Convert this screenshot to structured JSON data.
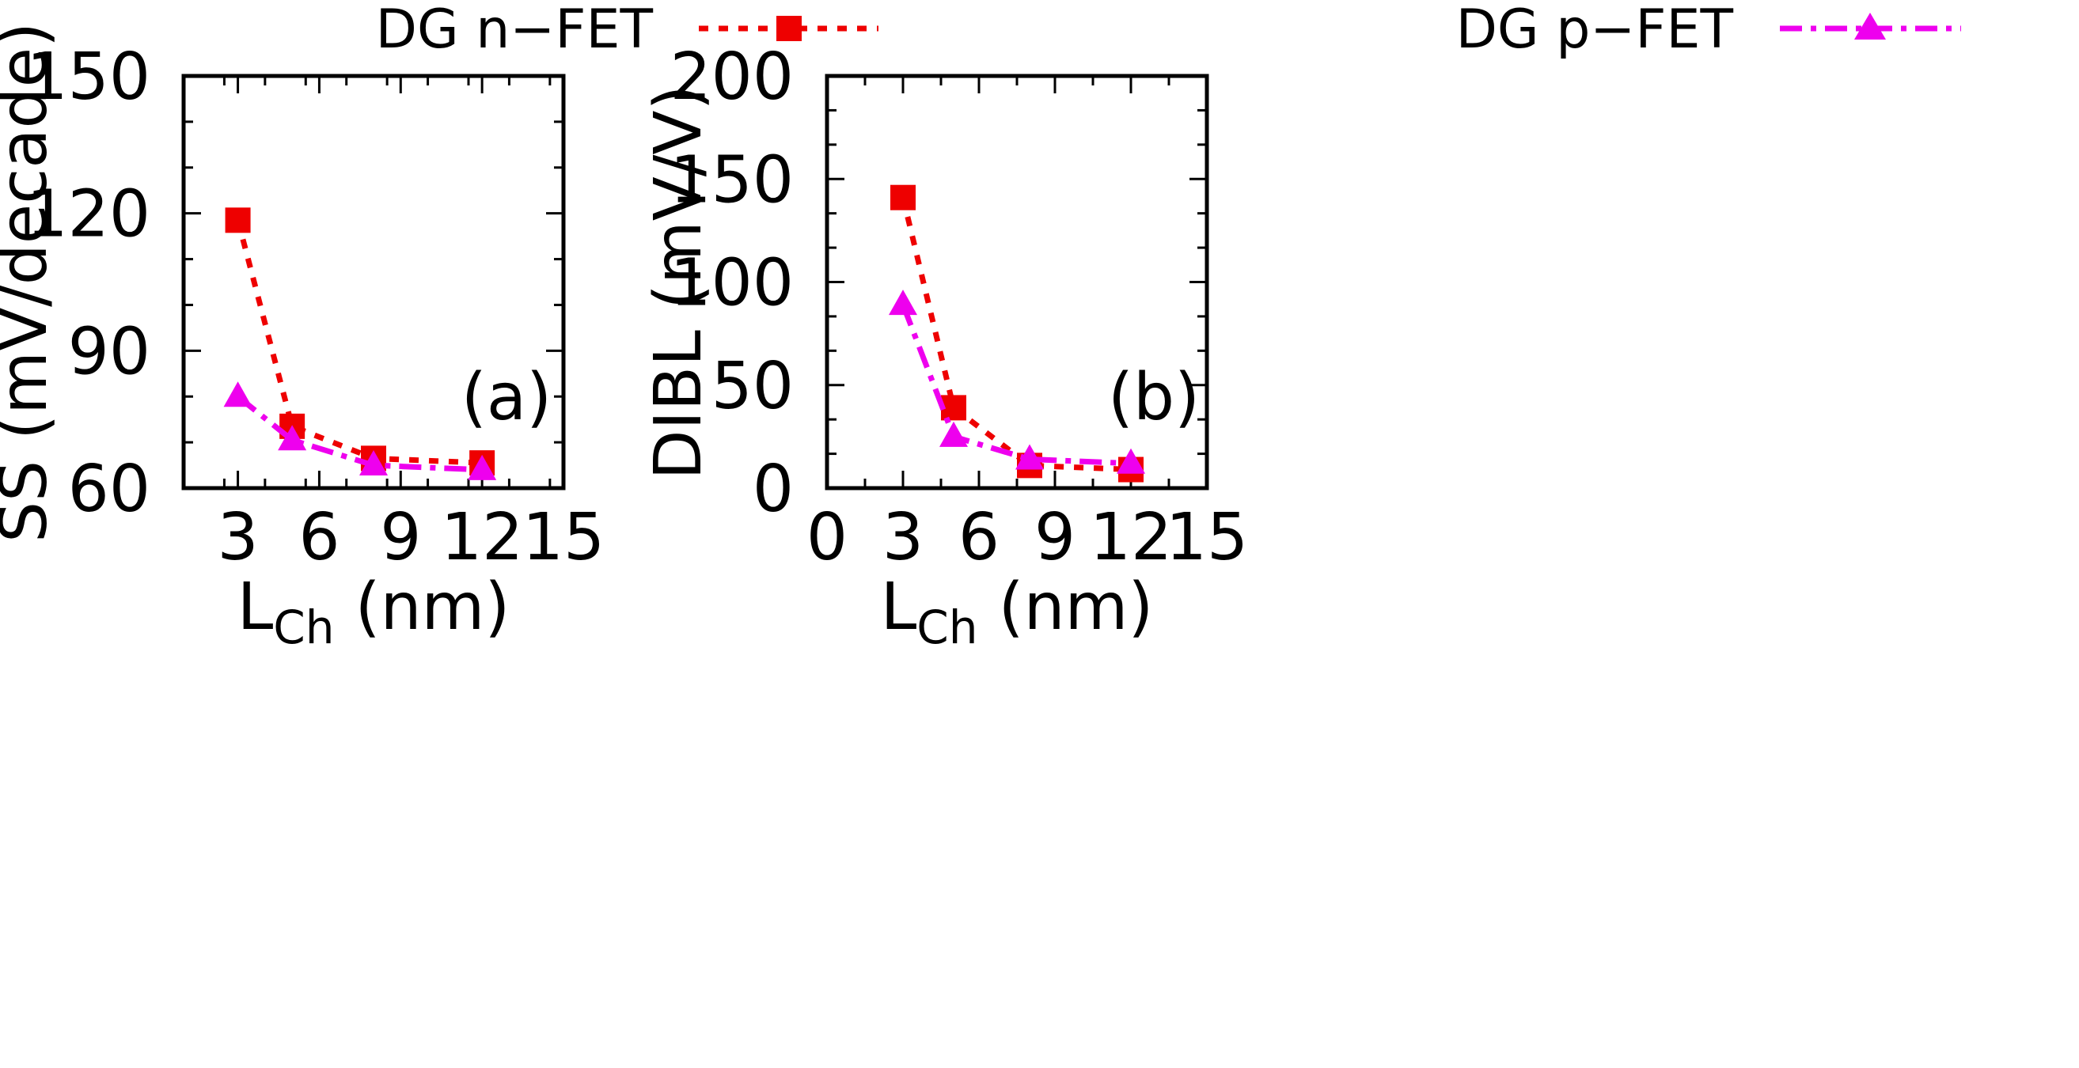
{
  "legend": [
    {
      "label": "DG n−FET",
      "color": "#ee0000",
      "marker": "square",
      "dash": "dotted"
    },
    {
      "label": "DG p−FET",
      "color": "#ee00ee",
      "marker": "triangle",
      "dash": "dash-dot"
    }
  ],
  "chart_data": [
    {
      "type": "line",
      "panel_tag": "(a)",
      "xlabel": {
        "main": "L",
        "sub": "Ch",
        "unit": "(nm)"
      },
      "ylabel": "SS (mV/decade)",
      "xlim": [
        1,
        15
      ],
      "ylim": [
        60,
        150
      ],
      "xticks": [
        3,
        6,
        9,
        12,
        15
      ],
      "yticks": [
        60,
        90,
        120,
        150
      ],
      "x": [
        3,
        5,
        8,
        12
      ],
      "series": [
        {
          "name": "DG n−FET",
          "values": [
            118.5,
            73.5,
            66.5,
            65.5
          ]
        },
        {
          "name": "DG p−FET",
          "values": [
            80,
            70.5,
            65,
            64
          ]
        }
      ]
    },
    {
      "type": "line",
      "panel_tag": "(b)",
      "xlabel": {
        "main": "L",
        "sub": "Ch",
        "unit": "(nm)"
      },
      "ylabel": "DIBL (mV/V)",
      "xlim": [
        0,
        15
      ],
      "ylim": [
        0,
        200
      ],
      "xticks": [
        0,
        3,
        6,
        9,
        12,
        15
      ],
      "yticks": [
        0,
        50,
        100,
        150,
        200
      ],
      "x": [
        3,
        5,
        8,
        12
      ],
      "series": [
        {
          "name": "DG n−FET",
          "values": [
            141,
            39,
            11,
            9
          ]
        },
        {
          "name": "DG p−FET",
          "values": [
            89,
            25,
            14,
            12
          ]
        }
      ]
    }
  ]
}
